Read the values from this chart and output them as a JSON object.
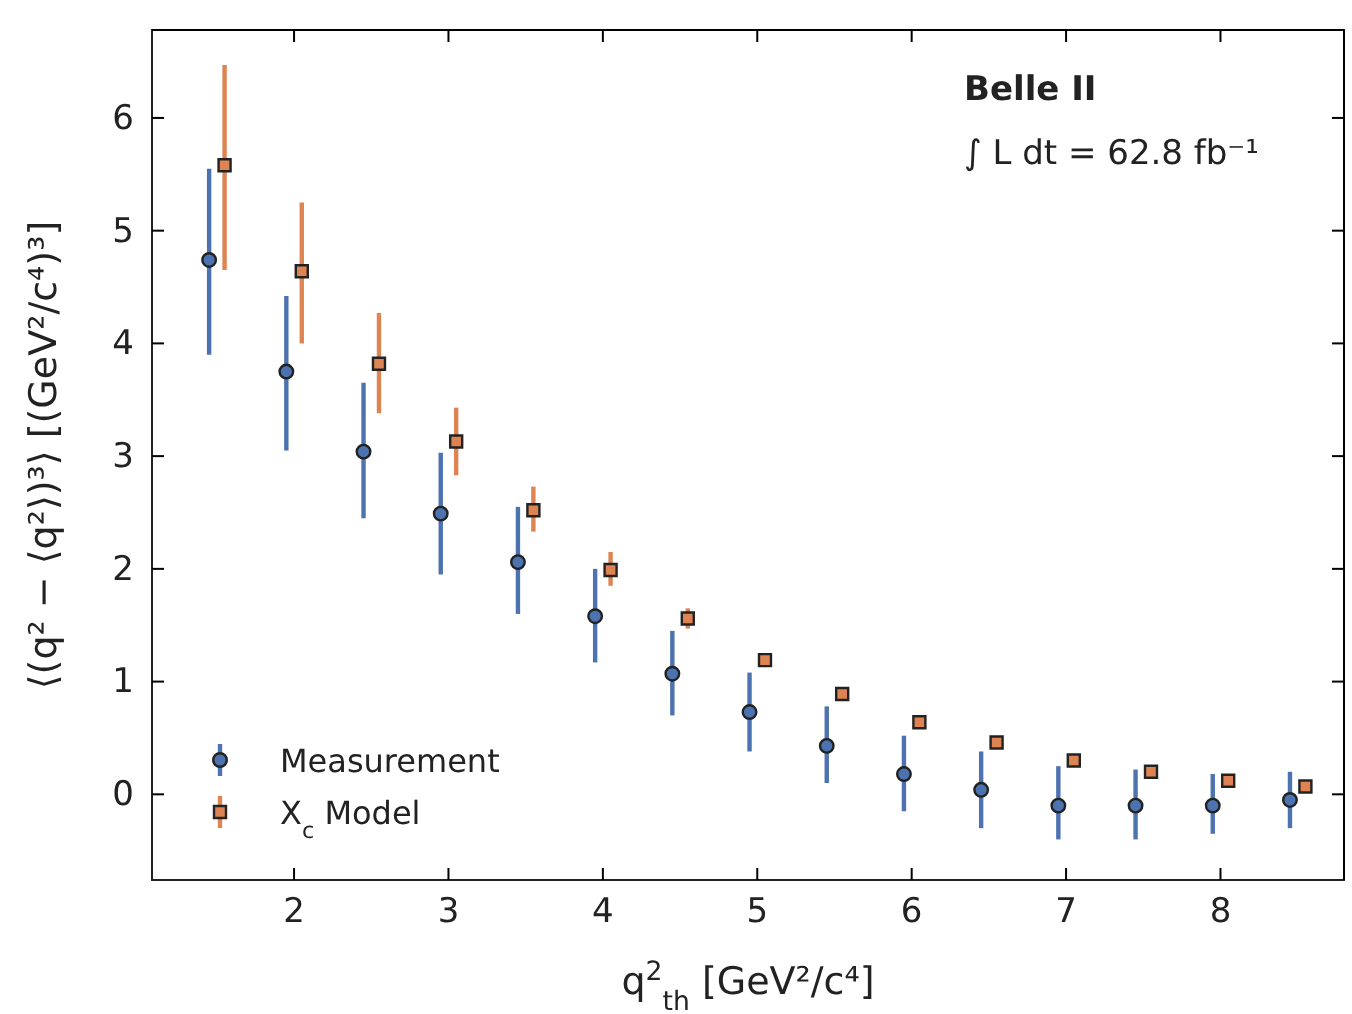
{
  "chart_data": {
    "type": "scatter",
    "xlabel": "q$^{2}$$_{th}$ [GeV²/c⁴]",
    "ylabel": "⟨(q² − ⟨q²⟩)³⟩ [(GeV²/c⁴)³]",
    "annotations": [
      "Belle II",
      "∫ L dt = 62.8 fb⁻¹"
    ],
    "xlim": [
      1.08,
      8.8
    ],
    "xticks": [
      2,
      3,
      4,
      5,
      6,
      7,
      8
    ],
    "ylim": [
      -0.76,
      6.78
    ],
    "yticks": [
      0,
      1,
      2,
      3,
      4,
      5,
      6
    ],
    "grid": false,
    "legend": "bottom left",
    "series": [
      {
        "name": "Measurement",
        "color": "#4c72b0",
        "marker": "circle",
        "x": [
          1.45,
          1.95,
          2.45,
          2.95,
          3.45,
          3.95,
          4.45,
          4.95,
          5.45,
          5.95,
          6.45,
          6.95,
          7.45,
          7.95,
          8.45
        ],
        "values": [
          4.74,
          3.75,
          3.04,
          2.49,
          2.06,
          1.58,
          1.07,
          0.73,
          0.43,
          0.18,
          0.04,
          -0.1,
          -0.1,
          -0.1,
          -0.05
        ],
        "errors": [
          [
            3.9,
            5.55
          ],
          [
            3.05,
            4.42
          ],
          [
            2.45,
            3.65
          ],
          [
            1.95,
            3.03
          ],
          [
            1.6,
            2.55
          ],
          [
            1.17,
            2.0
          ],
          [
            0.7,
            1.45
          ],
          [
            0.38,
            1.08
          ],
          [
            0.1,
            0.78
          ],
          [
            -0.15,
            0.52
          ],
          [
            -0.3,
            0.38
          ],
          [
            -0.4,
            0.25
          ],
          [
            -0.4,
            0.22
          ],
          [
            -0.35,
            0.18
          ],
          [
            -0.3,
            0.2
          ]
        ]
      },
      {
        "name": "X$_{c}$ Model",
        "color": "#dd8452",
        "marker": "square",
        "x": [
          1.55,
          2.05,
          2.55,
          3.05,
          3.55,
          4.05,
          4.55,
          5.05,
          5.55,
          6.05,
          6.55,
          7.05,
          7.55,
          8.05,
          8.55
        ],
        "values": [
          5.58,
          4.64,
          3.82,
          3.13,
          2.52,
          1.99,
          1.56,
          1.19,
          0.89,
          0.64,
          0.46,
          0.3,
          0.2,
          0.12,
          0.07
        ],
        "errors": [
          [
            4.65,
            6.47
          ],
          [
            4.0,
            5.25
          ],
          [
            3.38,
            4.27
          ],
          [
            2.83,
            3.43
          ],
          [
            2.33,
            2.73
          ],
          [
            1.85,
            2.15
          ],
          [
            1.47,
            1.65
          ],
          [
            1.13,
            1.25
          ],
          [
            0.85,
            0.93
          ],
          [
            0.61,
            0.67
          ],
          [
            0.44,
            0.48
          ],
          [
            0.28,
            0.32
          ],
          [
            0.19,
            0.21
          ],
          [
            0.11,
            0.13
          ],
          [
            0.06,
            0.08
          ]
        ]
      }
    ]
  }
}
